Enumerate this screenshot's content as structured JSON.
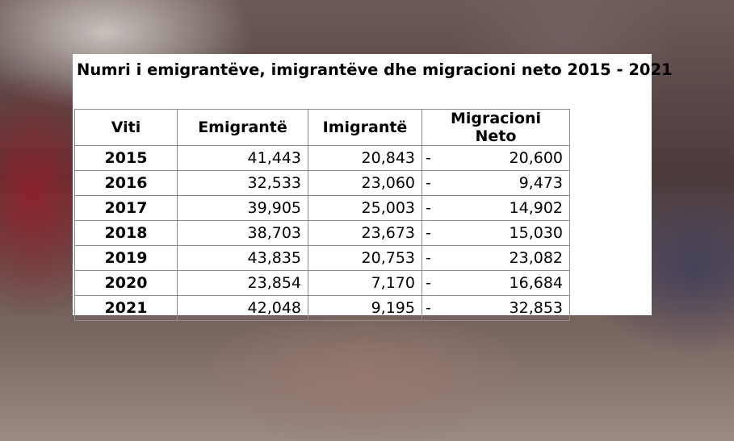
{
  "title": "Numri i emigrantëve, imigrantëve dhe migracioni neto 2015 - 2021",
  "table": {
    "header": [
      "Viti",
      "Emigrantë",
      "Imigrantë",
      "Migracioni Neto"
    ],
    "rows": [
      [
        "2015",
        "41,443",
        "20,843",
        "-",
        "20,600"
      ],
      [
        "2016",
        "32,533",
        "23,060",
        "-",
        "9,473"
      ],
      [
        "2017",
        "39,905",
        "25,003",
        "-",
        "14,902"
      ],
      [
        "2018",
        "38,703",
        "23,673",
        "-",
        "15,030"
      ],
      [
        "2019",
        "43,835",
        "20,753",
        "-",
        "23,082"
      ],
      [
        "2020",
        "23,854",
        "7,170",
        "-",
        "16,684"
      ],
      [
        "2021",
        "42,048",
        "9,195",
        "-",
        "32,853"
      ]
    ]
  }
}
